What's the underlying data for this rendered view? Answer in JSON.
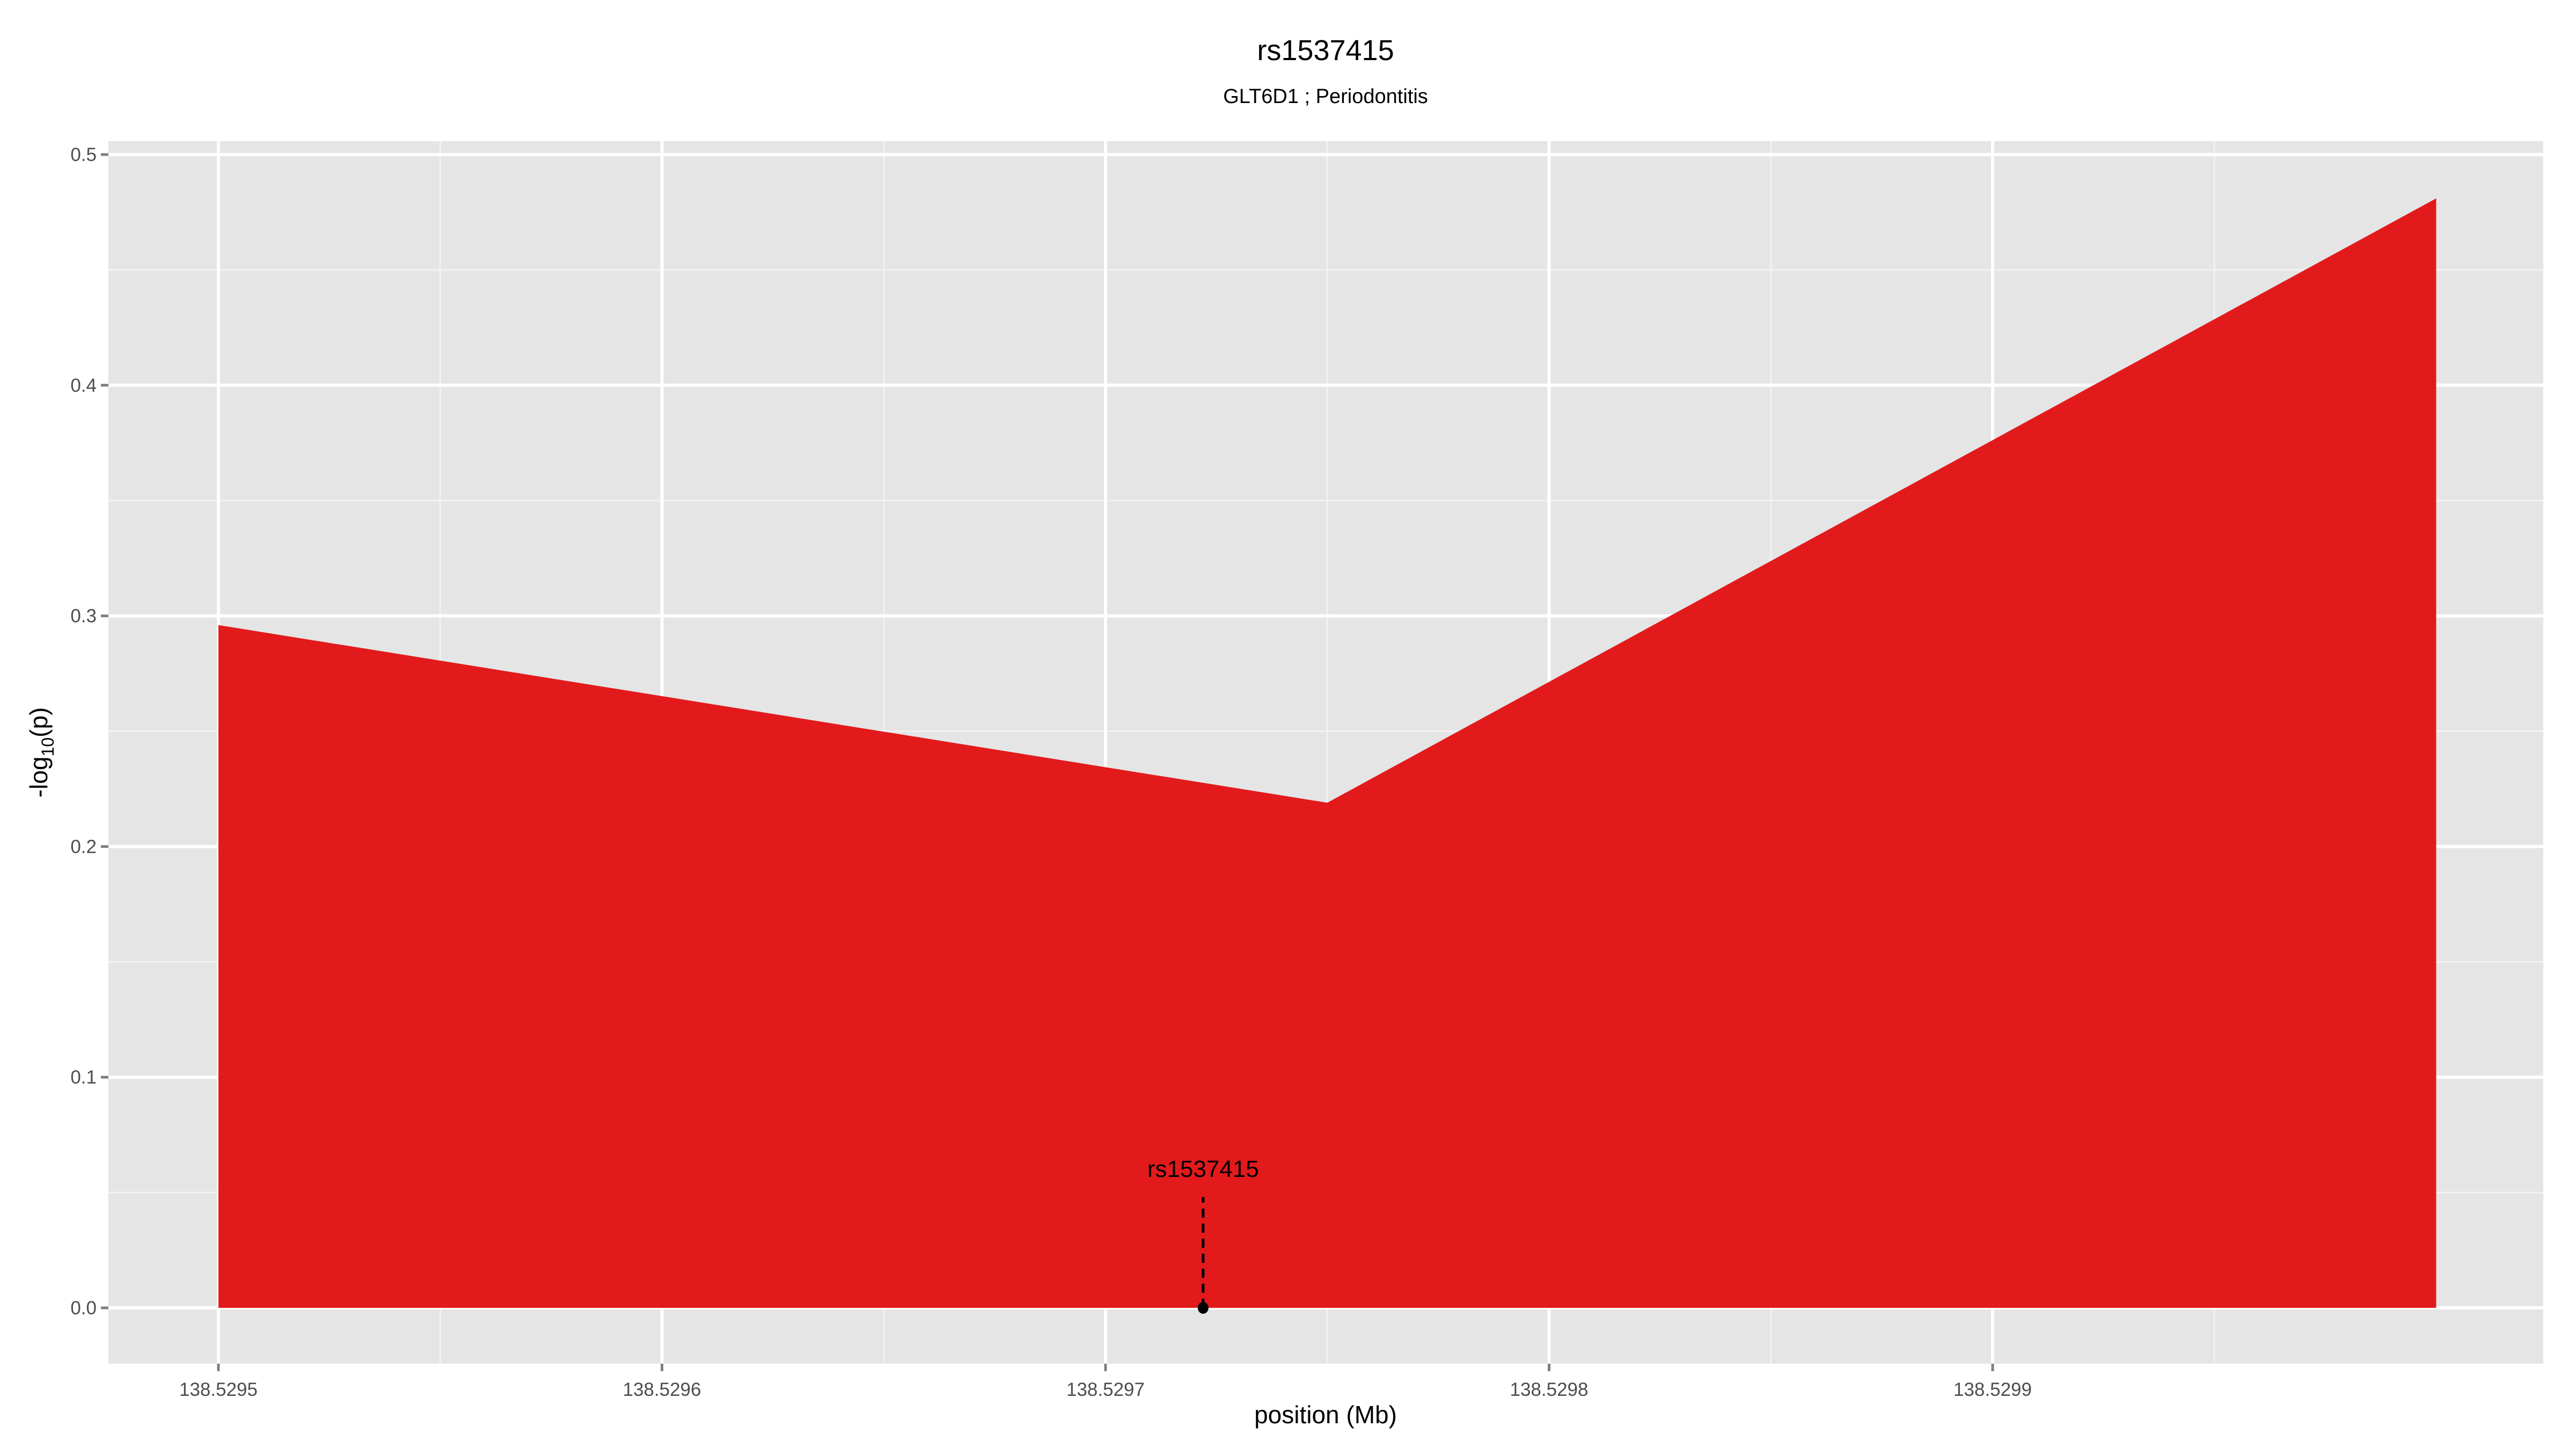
{
  "chart_data": {
    "type": "area",
    "title": "rs1537415",
    "subtitle": "GLT6D1 ; Periodontitis",
    "xlabel": "position (Mb)",
    "ylabel_prefix": "-log",
    "ylabel_sub": "10",
    "ylabel_suffix": "(p)",
    "xlim": [
      138.529475,
      138.53002
    ],
    "ylim": [
      -0.024,
      0.505
    ],
    "x_ticks": [
      "138.5295",
      "138.5296",
      "138.5297",
      "138.5298",
      "138.5299"
    ],
    "x_tick_values": [
      138.5295,
      138.5296,
      138.5297,
      138.5298,
      138.5299
    ],
    "y_ticks": [
      "0.0",
      "0.1",
      "0.2",
      "0.3",
      "0.4",
      "0.5"
    ],
    "y_tick_values": [
      0,
      0.1,
      0.2,
      0.3,
      0.4,
      0.5
    ],
    "grid": true,
    "series": [
      {
        "x": [
          138.5295,
          138.52975,
          138.53
        ],
        "y": [
          0.296,
          0.219,
          0.481
        ],
        "color": "#e31a1c"
      }
    ],
    "annotation": {
      "label": "rs1537415",
      "x": 138.529722,
      "y": 0,
      "label_y": 0.06
    },
    "colors": {
      "panel": "#e5e5e5",
      "grid_major": "#ffffff",
      "grid_minor": "#f2f2f2",
      "tick_text": "#4d4d4d"
    }
  }
}
